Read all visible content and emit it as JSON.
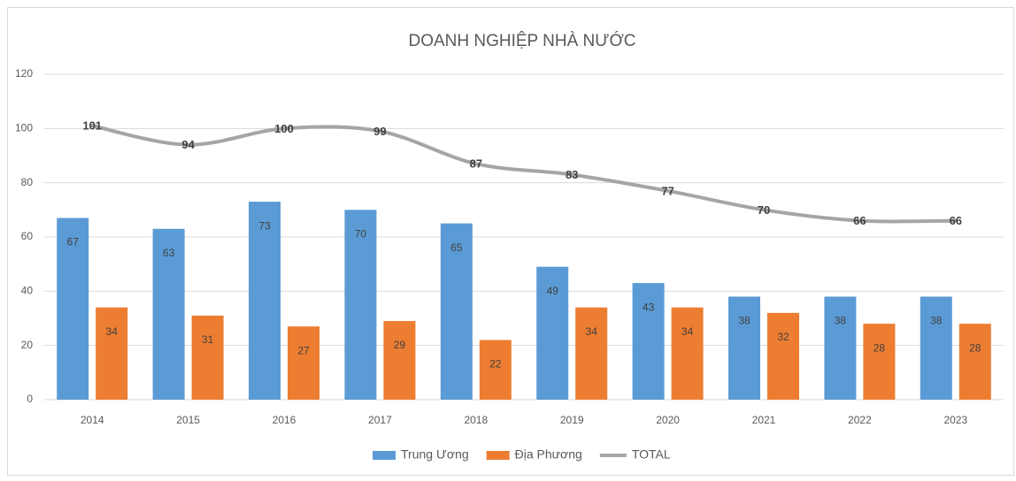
{
  "chart_data": {
    "type": "bar",
    "title": "DOANH NGHIỆP NHÀ NƯỚC",
    "categories": [
      "2014",
      "2015",
      "2016",
      "2017",
      "2018",
      "2019",
      "2020",
      "2021",
      "2022",
      "2023"
    ],
    "series": [
      {
        "name": "Trung Ương",
        "color": "#5b9bd5",
        "type": "bar",
        "values": [
          67,
          63,
          73,
          70,
          65,
          49,
          43,
          38,
          38,
          38
        ]
      },
      {
        "name": "Địa Phương",
        "color": "#ed7d31",
        "type": "bar",
        "values": [
          34,
          31,
          27,
          29,
          22,
          34,
          34,
          32,
          28,
          28
        ]
      },
      {
        "name": "TOTAL",
        "color": "#a5a5a5",
        "type": "line",
        "smooth": true,
        "values": [
          101,
          94,
          100,
          99,
          87,
          83,
          77,
          70,
          66,
          66
        ]
      }
    ],
    "ylim": [
      0,
      120
    ],
    "yticks": [
      0,
      20,
      40,
      60,
      80,
      100,
      120
    ],
    "grid": true,
    "legend": "bottom"
  }
}
